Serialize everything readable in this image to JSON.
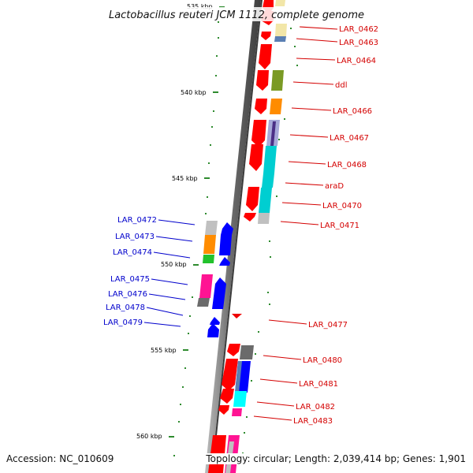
{
  "title": "Lactobacillus reuteri JCM 1112, complete genome",
  "footer": {
    "accession": "Accession: NC_010609",
    "topology": "Topology: circular; Length: 2,039,414 bp; Genes: 1,901"
  },
  "kbp_labels": [
    "535 kbp",
    "540 kbp",
    "545 kbp",
    "550 kbp",
    "555 kbp",
    "560 kbp"
  ],
  "genes_right": [
    "LAR_0462",
    "LAR_0463",
    "LAR_0464",
    "ddl",
    "LAR_0466",
    "LAR_0467",
    "LAR_0468",
    "araD",
    "LAR_0470",
    "LAR_0471",
    "LAR_0477",
    "LAR_0480",
    "LAR_0481",
    "LAR_0482",
    "LAR_0483"
  ],
  "genes_left": [
    "LAR_0472",
    "LAR_0473",
    "LAR_0474",
    "LAR_0475",
    "LAR_0476",
    "LAR_0478",
    "LAR_0479"
  ],
  "colors": {
    "forward_strand": "#ff0000",
    "reverse_strand": "#0000ff",
    "right_labels": "#d40000",
    "left_labels": "#0000cc",
    "scale_ticks": "#2e8b2e",
    "genome_axis": "#808080"
  }
}
